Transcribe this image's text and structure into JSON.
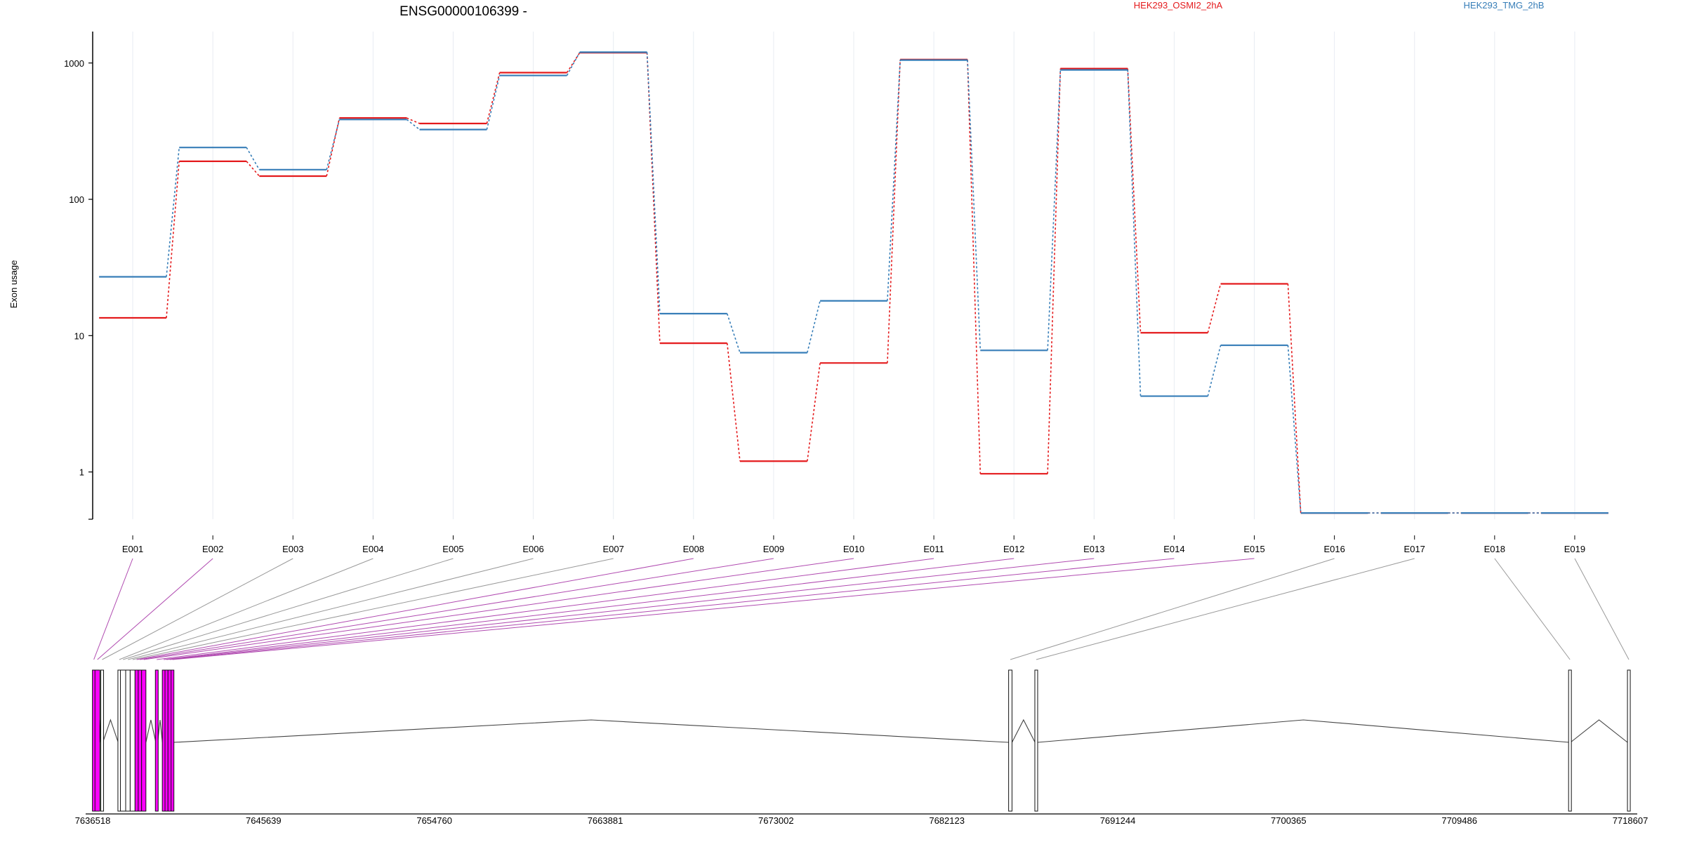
{
  "chart_data": {
    "type": "line",
    "title": "ENSG00000106399 -",
    "ylabel": "Exon usage",
    "yscale": "log",
    "ylim": [
      0.45,
      1700
    ],
    "yticks": [
      "1",
      "10",
      "100",
      "1000"
    ],
    "grid": "vertical",
    "legend": "top-right",
    "categories": [
      "E001",
      "E002",
      "E003",
      "E004",
      "E005",
      "E006",
      "E007",
      "E008",
      "E009",
      "E010",
      "E011",
      "E012",
      "E013",
      "E014",
      "E015",
      "E016",
      "E017",
      "E018",
      "E019"
    ],
    "series": [
      {
        "name": "HEK293_OSMI2_2hA",
        "color": "#e41a1c",
        "values": [
          13.5,
          190,
          148,
          395,
          360,
          850,
          1190,
          8.8,
          1.2,
          6.3,
          1060,
          0.97,
          910,
          10.5,
          24,
          0.5,
          0.5,
          0.5,
          0.5
        ]
      },
      {
        "name": "HEK293_TMG_2hB",
        "color": "#377eb8",
        "values": [
          27,
          240,
          165,
          385,
          325,
          810,
          1200,
          14.5,
          7.5,
          18,
          1050,
          7.8,
          890,
          3.6,
          8.5,
          0.5,
          0.5,
          0.5,
          0.5
        ]
      }
    ]
  },
  "gene_model": {
    "coordinate_ticks": [
      "7636518",
      "7645639",
      "7654760",
      "7663881",
      "7673002",
      "7682123",
      "7691244",
      "7700365",
      "7709486",
      "7718607"
    ],
    "coord_start": 7636518,
    "coord_end": 7718607,
    "exon_color": "#ff00ff",
    "connector_highlight_color": "#b04ab0",
    "connector_plain_color": "#999999",
    "highlighted_exons": [
      "E001",
      "E002",
      "E008",
      "E009",
      "E010",
      "E011",
      "E012",
      "E013",
      "E014",
      "E015"
    ],
    "exons": [
      {
        "id": "E001",
        "start": 7636518,
        "end": 7636640
      },
      {
        "id": "E002",
        "start": 7636640,
        "end": 7636900
      },
      {
        "id": "E003",
        "start": 7636990,
        "end": 7637060
      },
      {
        "id": "E004",
        "start": 7637880,
        "end": 7638000
      },
      {
        "id": "E005",
        "start": 7638000,
        "end": 7638280
      },
      {
        "id": "E006",
        "start": 7638280,
        "end": 7638520
      },
      {
        "id": "E007",
        "start": 7638520,
        "end": 7638780
      },
      {
        "id": "E008",
        "start": 7638780,
        "end": 7638950
      },
      {
        "id": "E009",
        "start": 7638950,
        "end": 7639130
      },
      {
        "id": "E010",
        "start": 7639130,
        "end": 7639360
      },
      {
        "id": "E011",
        "start": 7639890,
        "end": 7639990
      },
      {
        "id": "E012",
        "start": 7640240,
        "end": 7640380
      },
      {
        "id": "E013",
        "start": 7640380,
        "end": 7640540
      },
      {
        "id": "E014",
        "start": 7640540,
        "end": 7640720
      },
      {
        "id": "E015",
        "start": 7640720,
        "end": 7640840
      },
      {
        "id": "E016",
        "start": 7685420,
        "end": 7685600
      },
      {
        "id": "E017",
        "start": 7686830,
        "end": 7686960
      },
      {
        "id": "E018",
        "start": 7715360,
        "end": 7715420
      },
      {
        "id": "E019",
        "start": 7718460,
        "end": 7718607
      }
    ]
  }
}
